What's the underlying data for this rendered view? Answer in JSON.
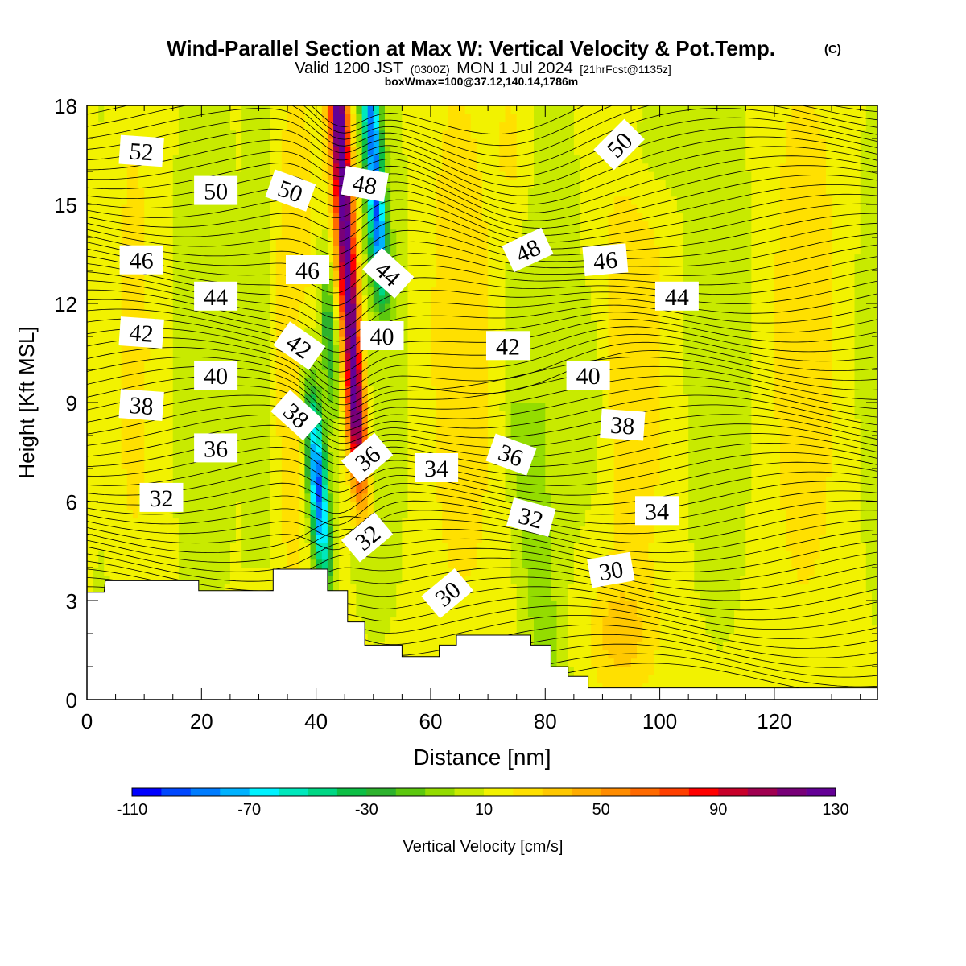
{
  "header": {
    "title": "Wind-Parallel Section at Max W: Vertical Velocity & Pot.Temp.",
    "copyright": "(C)",
    "valid_prefix": "Valid 1200 JST",
    "valid_utc": "(0300Z)",
    "valid_date": "MON 1 Jul 2024",
    "forecast_info": "[21hrFcst@1135z]",
    "box_info": "boxWmax=100@37.12,140.14,1786m"
  },
  "chart_data": {
    "type": "heatmap",
    "xlabel": "Distance [nm]",
    "ylabel": "Height [Kft MSL]",
    "xlim": [
      0,
      138
    ],
    "ylim": [
      0,
      18
    ],
    "x_ticks": [
      0,
      20,
      40,
      60,
      80,
      100,
      120
    ],
    "y_ticks": [
      0,
      3,
      6,
      9,
      12,
      15,
      18
    ],
    "field": "Vertical Velocity [cm/s]",
    "colorbar": {
      "label": "Vertical Velocity [cm/s]",
      "tick_labels": [
        -110,
        -70,
        -30,
        10,
        50,
        90,
        130
      ],
      "min": -110,
      "max": 130,
      "step": 10,
      "colors": [
        "#0000ff",
        "#0047ff",
        "#007cff",
        "#00b2ff",
        "#00f2ff",
        "#00e8bc",
        "#00d784",
        "#0dbf45",
        "#2db22d",
        "#5cc80e",
        "#94dc00",
        "#c8ea00",
        "#f2f200",
        "#ffe000",
        "#ffc800",
        "#ffac00",
        "#ff8c00",
        "#ff6a00",
        "#ff3f00",
        "#ff0000",
        "#c8002a",
        "#a00050",
        "#780078",
        "#640096"
      ]
    },
    "features": [
      {
        "name": "updraft core",
        "x": 46,
        "y_range": [
          4.5,
          18
        ],
        "peak_cm_s": 120
      },
      {
        "name": "downdraft core",
        "x": 40,
        "y_range": [
          3.5,
          9
        ],
        "peak_cm_s": -100
      },
      {
        "name": "downdraft upper",
        "x": 51,
        "y_range": [
          12,
          18
        ],
        "peak_cm_s": -80
      }
    ],
    "terrain_kft": {
      "x": [
        0,
        3,
        3.2,
        19.5,
        19.5,
        32.5,
        32.5,
        42,
        42,
        45.5,
        45.5,
        48.5,
        48.5,
        55,
        55,
        61.5,
        61.5,
        64.5,
        64.5,
        77.5,
        77.5,
        81,
        81,
        84,
        84,
        87.5,
        87.5,
        138
      ],
      "y": [
        3.25,
        3.25,
        3.6,
        3.6,
        3.3,
        3.3,
        3.95,
        3.95,
        3.3,
        3.3,
        2.35,
        2.35,
        1.65,
        1.65,
        1.3,
        1.3,
        1.65,
        1.65,
        1.95,
        1.95,
        1.65,
        1.65,
        1.0,
        1.0,
        0.7,
        0.7,
        0.35,
        0.35
      ]
    },
    "potential_temperature_labels": [
      {
        "text": "52",
        "x": 9.5,
        "y": 16.6,
        "angle": 4
      },
      {
        "text": "50",
        "x": 22.5,
        "y": 15.4,
        "angle": 0
      },
      {
        "text": "50",
        "x": 35.5,
        "y": 15.4,
        "angle": 20
      },
      {
        "text": "48",
        "x": 48.5,
        "y": 15.6,
        "angle": 10
      },
      {
        "text": "50",
        "x": 93,
        "y": 16.8,
        "angle": -45
      },
      {
        "text": "46",
        "x": 9.5,
        "y": 13.3,
        "angle": 0
      },
      {
        "text": "46",
        "x": 38.5,
        "y": 13.0,
        "angle": 0
      },
      {
        "text": "44",
        "x": 52.5,
        "y": 12.9,
        "angle": 42
      },
      {
        "text": "48",
        "x": 77,
        "y": 13.6,
        "angle": -25
      },
      {
        "text": "46",
        "x": 90.5,
        "y": 13.3,
        "angle": -5
      },
      {
        "text": "44",
        "x": 22.5,
        "y": 12.2,
        "angle": 0
      },
      {
        "text": "44",
        "x": 103,
        "y": 12.2,
        "angle": 0
      },
      {
        "text": "42",
        "x": 9.5,
        "y": 11.1,
        "angle": 4
      },
      {
        "text": "42",
        "x": 37,
        "y": 10.7,
        "angle": 35
      },
      {
        "text": "40",
        "x": 51.5,
        "y": 11.0,
        "angle": 0
      },
      {
        "text": "42",
        "x": 73.5,
        "y": 10.7,
        "angle": 0
      },
      {
        "text": "40",
        "x": 22.5,
        "y": 9.8,
        "angle": 0
      },
      {
        "text": "40",
        "x": 87.5,
        "y": 9.8,
        "angle": 0
      },
      {
        "text": "38",
        "x": 9.5,
        "y": 8.9,
        "angle": 4
      },
      {
        "text": "38",
        "x": 36.5,
        "y": 8.6,
        "angle": 42
      },
      {
        "text": "38",
        "x": 93.5,
        "y": 8.3,
        "angle": 4
      },
      {
        "text": "36",
        "x": 22.5,
        "y": 7.6,
        "angle": 0
      },
      {
        "text": "36",
        "x": 49,
        "y": 7.3,
        "angle": -40
      },
      {
        "text": "36",
        "x": 74,
        "y": 7.4,
        "angle": 20
      },
      {
        "text": "34",
        "x": 61,
        "y": 7.0,
        "angle": 0
      },
      {
        "text": "32",
        "x": 13,
        "y": 6.1,
        "angle": 0
      },
      {
        "text": "34",
        "x": 99.5,
        "y": 5.7,
        "angle": 0
      },
      {
        "text": "32",
        "x": 77.5,
        "y": 5.5,
        "angle": 15
      },
      {
        "text": "32",
        "x": 49,
        "y": 4.9,
        "angle": -40
      },
      {
        "text": "30",
        "x": 91.5,
        "y": 3.9,
        "angle": -10
      },
      {
        "text": "30",
        "x": 63,
        "y": 3.2,
        "angle": -40
      }
    ]
  }
}
